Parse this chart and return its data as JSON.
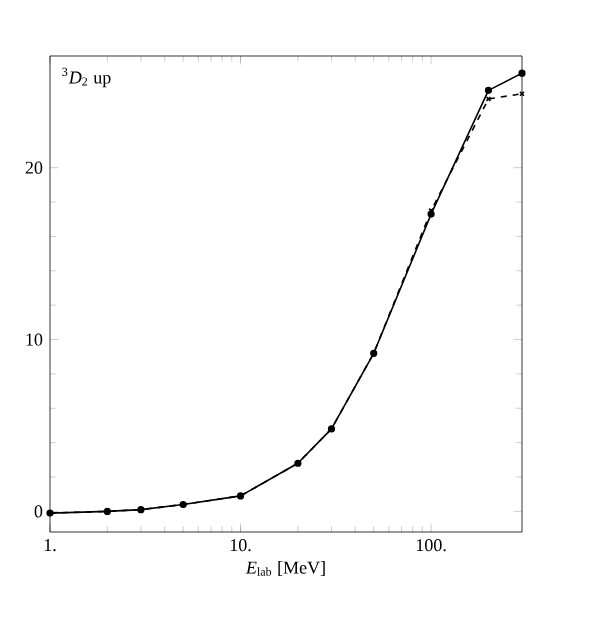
{
  "chart_data": {
    "type": "line",
    "xlabel": "*E*$_{lab}$ [MeV]",
    "annotations": [
      "$^{3}$*D*$_{2}$ up"
    ],
    "x": [
      1,
      2,
      3,
      5,
      10,
      20,
      30,
      50,
      100,
      200,
      300
    ],
    "series": [
      {
        "color": "#000000",
        "marker": "circle",
        "line_style": "solid",
        "values": [
          -0.1,
          0,
          0.1,
          0.4,
          0.9,
          2.8,
          4.8,
          9.2,
          17.3,
          24.5,
          25.5
        ]
      },
      {
        "color": "#000000",
        "marker": "cross",
        "line_style": "dashed",
        "values": [
          -0.1,
          0,
          0.1,
          0.4,
          0.9,
          2.8,
          4.8,
          9.2,
          17.5,
          24.0,
          24.3
        ]
      }
    ],
    "log": "x",
    "xlim": [
      1,
      300
    ],
    "ylim": [
      -1.2,
      26.5
    ],
    "xticks": [
      {
        "value": 1,
        "label": "1."
      },
      {
        "value": 10,
        "label": "10."
      },
      {
        "value": 100,
        "label": "100."
      }
    ],
    "yticks": [
      0,
      10,
      20
    ],
    "grid": false
  }
}
